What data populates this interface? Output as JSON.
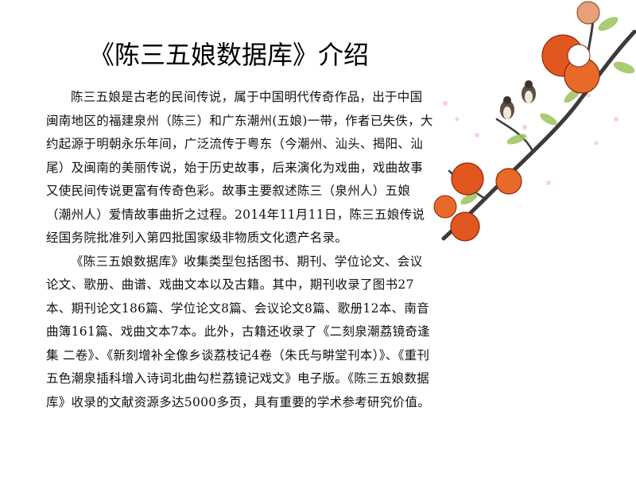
{
  "slide": {
    "title": "《陈三五娘数据库》介绍",
    "paragraphs": [
      "陈三五娘是古老的民间传说，属于中国明代传奇作品，出于中国闽南地区的福建泉州（陈三）和广东潮州(五娘)一带，作者已失佚，大约起源于明朝永乐年间，广泛流传于粤东（今潮州、汕头、揭阳、汕尾）及闽南的美丽传说，始于历史故事，后来演化为戏曲，戏曲故事又使民间传说更富有传奇色彩。故事主要叙述陈三（泉州人）五娘（潮州人）爱情故事曲折之过程。2014年11月11日，陈三五娘传说经国务院批准列入第四批国家级非物质文化遗产名录。",
      "《陈三五娘数据库》收集类型包括图书、期刊、学位论文、会议论文、歌册、曲谱、戏曲文本以及古籍。其中，期刊收录了图书27本、期刊论文186篇、学位论文8篇、会议论文8篇、歌册12本、南音曲簿161篇、戏曲文本7本。此外，古籍还收录了《二刻泉潮荔镜奇逢集 二卷》、《新刻增补全像乡谈荔枝记4卷（朱氏与畊堂刊本）》、《重刊五色潮泉插科增入诗词北曲勾栏荔镜记戏文》电子版。《陈三五娘数据库》收录的文献资源多达5000多页，具有重要的学术参考研究价值。"
    ]
  },
  "colors": {
    "background": "#ffffff",
    "text": "#111111",
    "fruit": "#e2571f",
    "branch": "#3b3b3b",
    "leaf": "#9cc45a"
  },
  "decoration": {
    "icon": "pomegranate-branch-illustration"
  }
}
